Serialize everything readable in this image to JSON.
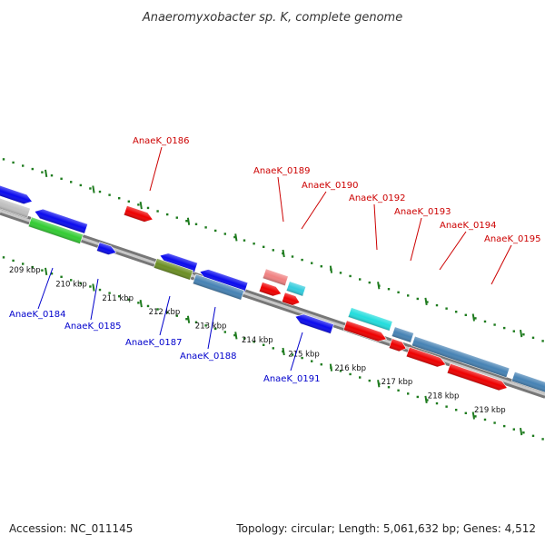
{
  "title": "Anaeromyxobacter sp. K, complete genome",
  "footer": {
    "accession": "Accession: NC_011145",
    "summary": "Topology: circular; Length: 5,061,632 bp; Genes: 4,512"
  },
  "colors": {
    "backbone_dark": "#777777",
    "backbone_light": "#c8c8c8",
    "ruler": "#1e7b1e",
    "label_top": "#cc0000",
    "label_bottom": "#0000cc"
  },
  "kbp_ticks": [
    "209 kbp",
    "210 kbp",
    "211 kbp",
    "212 kbp",
    "213 kbp",
    "214 kbp",
    "215 kbp",
    "216 kbp",
    "217 kbp",
    "218 kbp",
    "219 kbp"
  ],
  "gene_labels": [
    {
      "text": "AnaeK_0184",
      "side": "bottom"
    },
    {
      "text": "AnaeK_0185",
      "side": "bottom"
    },
    {
      "text": "AnaeK_0186",
      "side": "top"
    },
    {
      "text": "AnaeK_0187",
      "side": "bottom"
    },
    {
      "text": "AnaeK_0188",
      "side": "bottom"
    },
    {
      "text": "AnaeK_0189",
      "side": "top"
    },
    {
      "text": "AnaeK_0190",
      "side": "top"
    },
    {
      "text": "AnaeK_0191",
      "side": "bottom"
    },
    {
      "text": "AnaeK_0192",
      "side": "top"
    },
    {
      "text": "AnaeK_0193",
      "side": "top"
    },
    {
      "text": "AnaeK_0194",
      "side": "top"
    },
    {
      "text": "AnaeK_0195",
      "side": "top"
    }
  ],
  "features": [
    {
      "name": "blue-gene-left-edge",
      "color": "#0a0aee"
    },
    {
      "name": "blue-gene-0184",
      "color": "#0a0aee"
    },
    {
      "name": "blue-gene-small-0185",
      "color": "#0a0aee"
    },
    {
      "name": "grey-gene-left-edge",
      "color": "#bfbfbf"
    },
    {
      "name": "green-gene-0184",
      "color": "#33cc33"
    },
    {
      "name": "red-gene-0186",
      "color": "#ee0000"
    },
    {
      "name": "blue-gene-0187",
      "color": "#0a0aee"
    },
    {
      "name": "blue-gene-0188",
      "color": "#0a0aee"
    },
    {
      "name": "olive-gene-0187",
      "color": "#6b8e23"
    },
    {
      "name": "steelblue-gene-0188",
      "color": "#4682b4"
    },
    {
      "name": "pink-gene-0189",
      "color": "#f08080"
    },
    {
      "name": "cyan-gene-0190",
      "color": "#33ccdd"
    },
    {
      "name": "red-gene-0189",
      "color": "#ee0000"
    },
    {
      "name": "red-gene-0190",
      "color": "#ee0000"
    },
    {
      "name": "blue-gene-0191",
      "color": "#0a0aee"
    },
    {
      "name": "cyan-gene-0192",
      "color": "#22dddd"
    },
    {
      "name": "steelblue-gene-0193",
      "color": "#4682b4"
    },
    {
      "name": "steelblue-gene-0194",
      "color": "#4682b4"
    },
    {
      "name": "steelblue-gene-0195",
      "color": "#4682b4"
    },
    {
      "name": "red-gene-0192",
      "color": "#ee0000"
    },
    {
      "name": "red-gene-0193",
      "color": "#ee0000"
    },
    {
      "name": "red-gene-0194",
      "color": "#ee0000"
    },
    {
      "name": "red-gene-0195",
      "color": "#ee0000"
    }
  ]
}
